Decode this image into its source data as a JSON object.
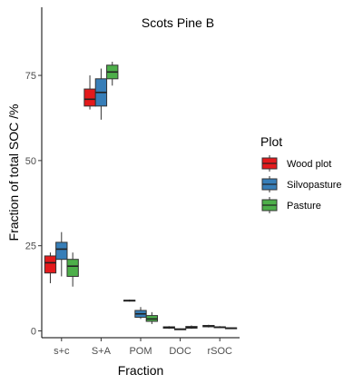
{
  "chart_data": {
    "type": "boxplot",
    "title": "Scots Pine B",
    "xlabel": "Fraction",
    "ylabel": "Fraction of total SOC /%",
    "categories": [
      "s+c",
      "S+A",
      "POM",
      "DOC",
      "rSOC"
    ],
    "ylim": [
      -2,
      95
    ],
    "yticks": [
      0,
      25,
      50,
      75
    ],
    "grid": false,
    "legend": {
      "title": "Plot",
      "placement": "right"
    },
    "series": [
      {
        "name": "Wood plot",
        "color": "#E41A1C",
        "boxes": [
          {
            "min": 14,
            "q1": 17,
            "median": 20,
            "q3": 22,
            "max": 23
          },
          {
            "min": 65,
            "q1": 66,
            "median": 68,
            "q3": 71,
            "max": 75
          },
          {
            "min": 8.6,
            "q1": 8.8,
            "median": 8.9,
            "q3": 9.0,
            "max": 9.2
          },
          {
            "min": 0.6,
            "q1": 0.8,
            "median": 1.0,
            "q3": 1.2,
            "max": 1.4
          },
          {
            "min": 1.0,
            "q1": 1.2,
            "median": 1.4,
            "q3": 1.6,
            "max": 1.8
          }
        ]
      },
      {
        "name": "Silvopasture",
        "color": "#377EB8",
        "boxes": [
          {
            "min": 16,
            "q1": 21,
            "median": 24,
            "q3": 26,
            "max": 29
          },
          {
            "min": 62,
            "q1": 66,
            "median": 70,
            "q3": 74,
            "max": 77
          },
          {
            "min": 3.5,
            "q1": 4.0,
            "median": 5.0,
            "q3": 6.0,
            "max": 7.0
          },
          {
            "min": 0.3,
            "q1": 0.4,
            "median": 0.5,
            "q3": 0.6,
            "max": 0.7
          },
          {
            "min": 0.8,
            "q1": 1.0,
            "median": 1.1,
            "q3": 1.2,
            "max": 1.4
          }
        ]
      },
      {
        "name": "Pasture",
        "color": "#4DAF4A",
        "boxes": [
          {
            "min": 13,
            "q1": 16,
            "median": 19,
            "q3": 21,
            "max": 23
          },
          {
            "min": 72,
            "q1": 74,
            "median": 76,
            "q3": 78,
            "max": 79
          },
          {
            "min": 2.0,
            "q1": 2.8,
            "median": 3.5,
            "q3": 4.5,
            "max": 5.5
          },
          {
            "min": 0.6,
            "q1": 0.8,
            "median": 1.0,
            "q3": 1.3,
            "max": 1.6
          },
          {
            "min": 0.6,
            "q1": 0.7,
            "median": 0.8,
            "q3": 0.9,
            "max": 1.0
          }
        ]
      }
    ]
  }
}
